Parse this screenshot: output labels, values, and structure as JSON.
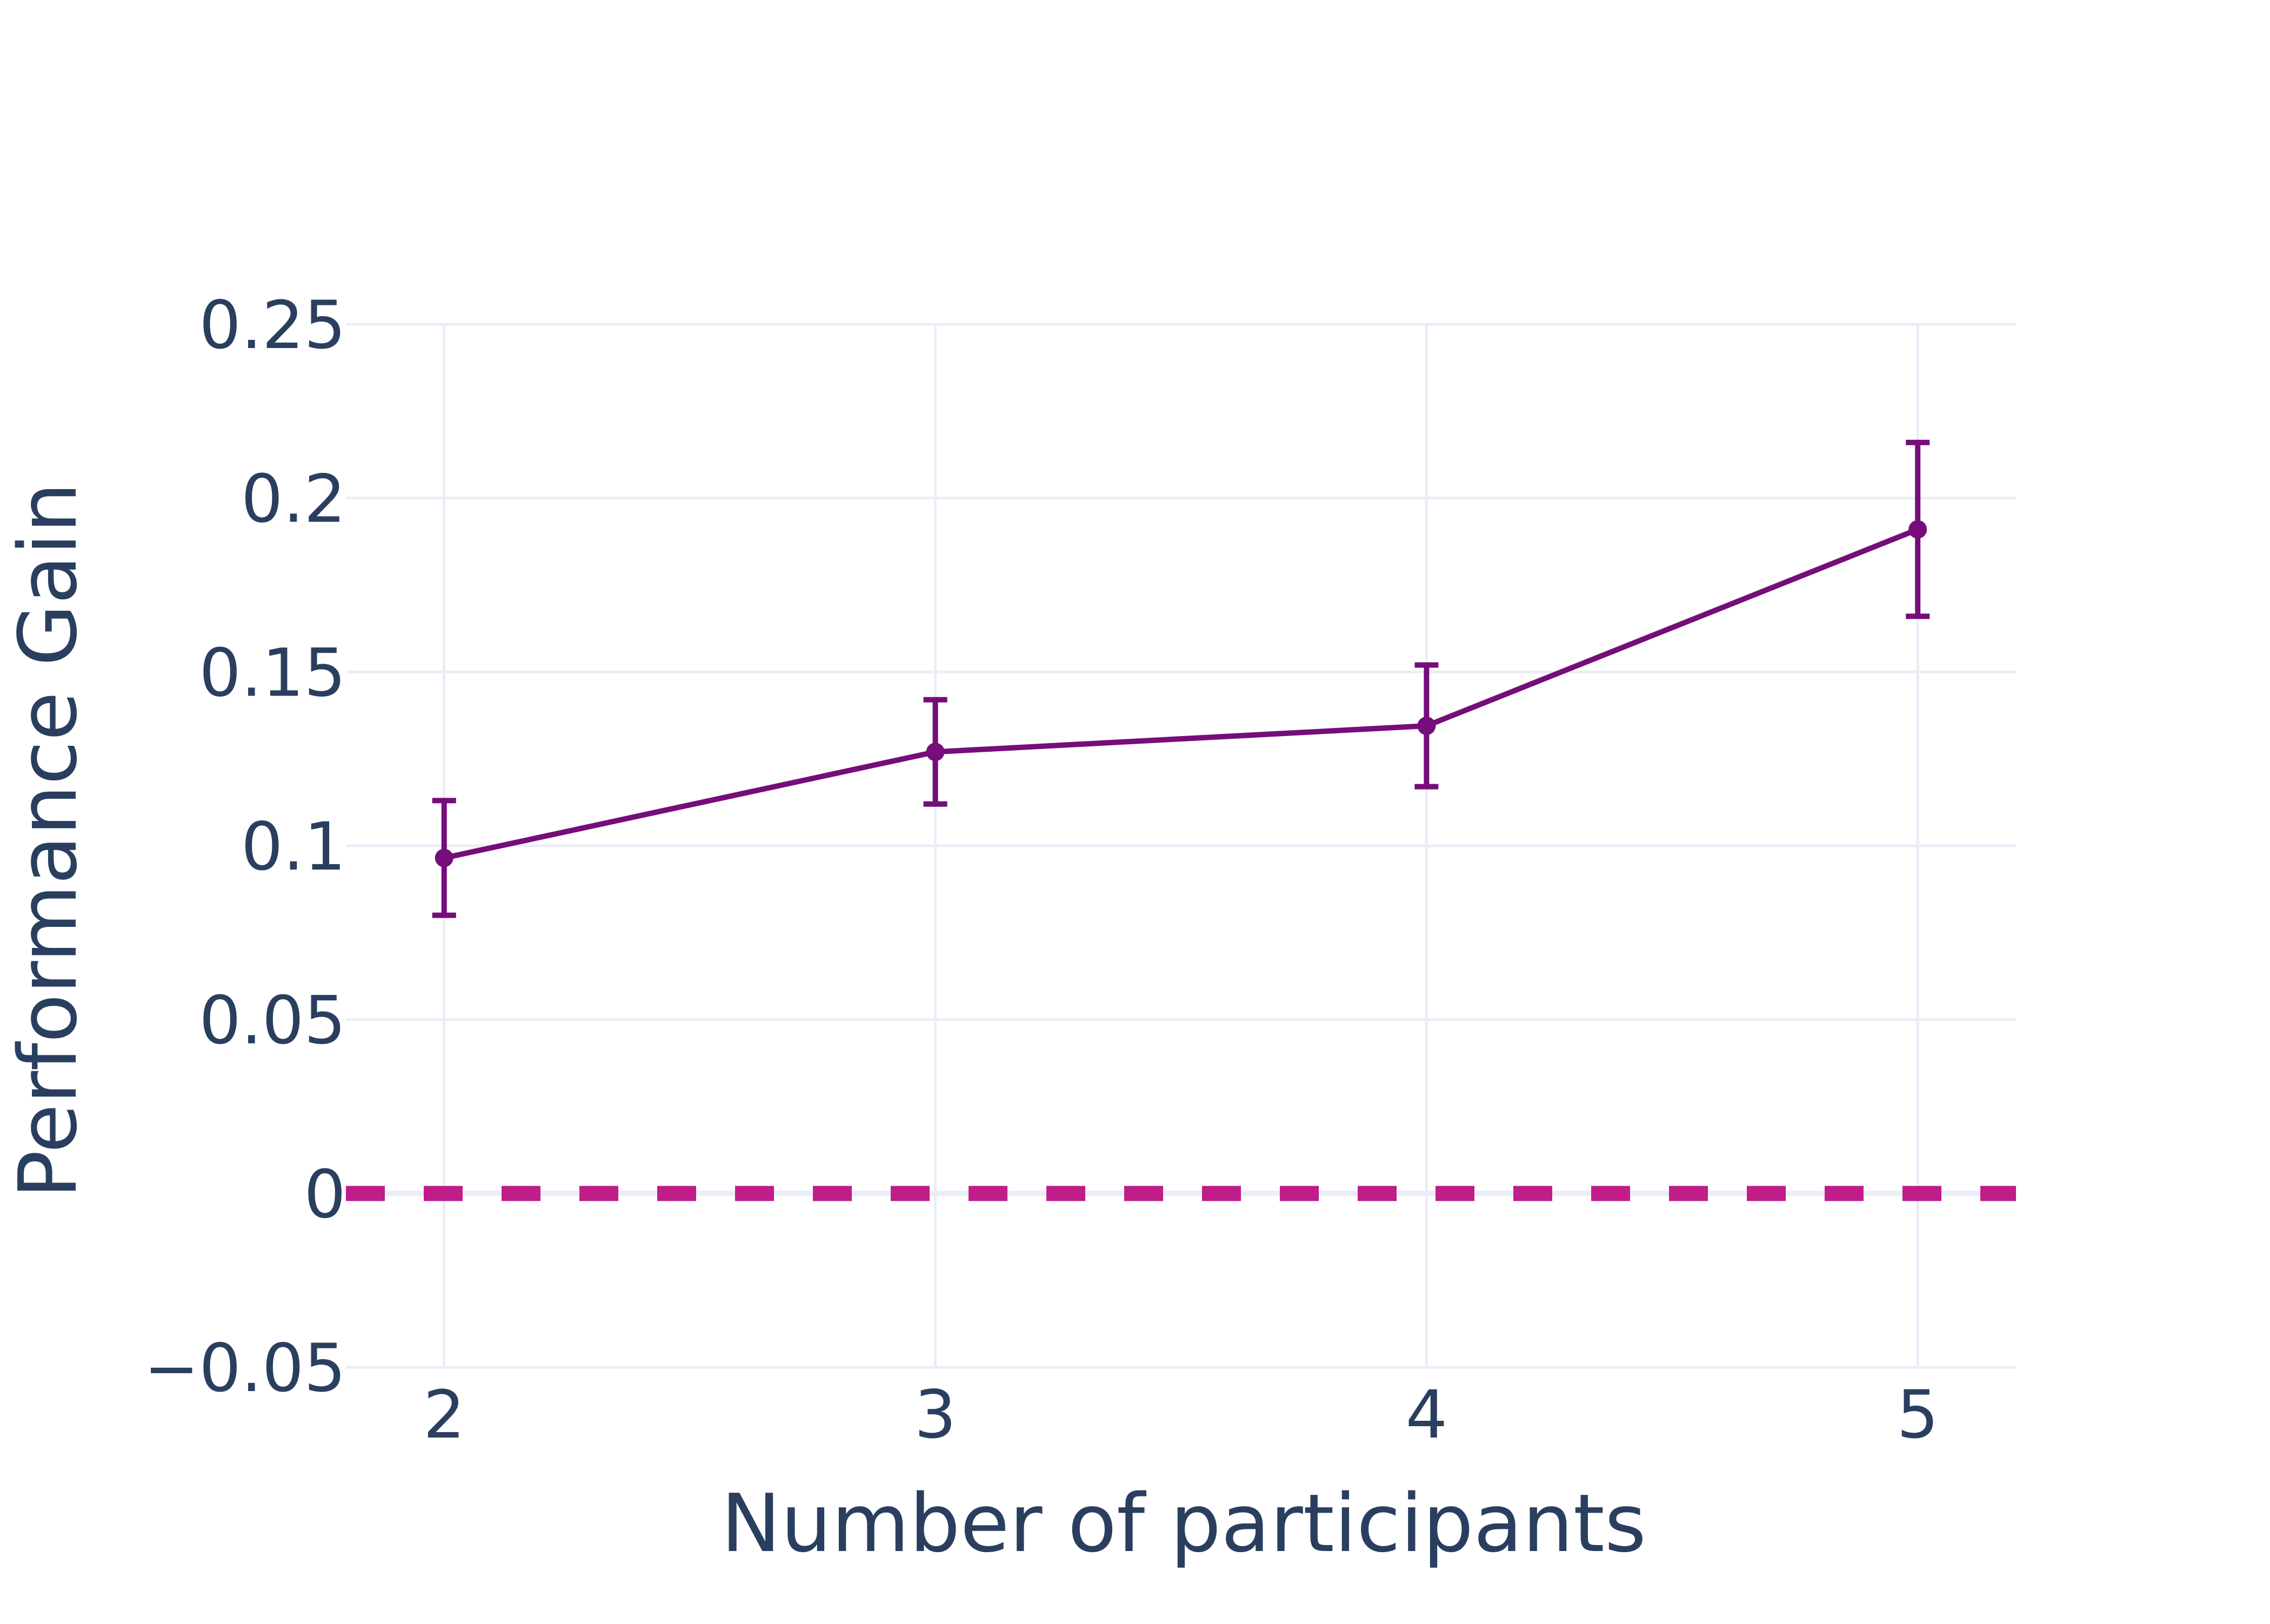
{
  "chart_data": {
    "type": "line",
    "title": "",
    "xlabel": "Number of participants",
    "ylabel": "Performance Gain",
    "x": [
      2,
      3,
      4,
      5
    ],
    "series": [
      {
        "values": [
          0.0965,
          0.127,
          0.1345,
          0.191
        ],
        "error_minus": [
          0.0165,
          0.015,
          0.0175,
          0.025
        ],
        "error_plus": [
          0.0165,
          0.015,
          0.0175,
          0.025
        ],
        "color": "#750d7a"
      }
    ],
    "xlim": [
      1.8,
      5.2
    ],
    "ylim": [
      -0.05,
      0.25
    ],
    "xticks": [
      2,
      3,
      4,
      5
    ],
    "xtick_labels": [
      "2",
      "3",
      "4",
      "5"
    ],
    "yticks": [
      -0.05,
      0,
      0.05,
      0.1,
      0.15,
      0.2,
      0.25
    ],
    "ytick_labels": [
      "−0.05",
      "0",
      "0.05",
      "0.1",
      "0.15",
      "0.2",
      "0.25"
    ],
    "reference_line": {
      "y": 0,
      "style": "dashed",
      "color": "#c01c8a"
    },
    "grid": true,
    "legend": "none",
    "colors": {
      "grid": "#ebedf7",
      "text": "#2a3f5f"
    }
  }
}
